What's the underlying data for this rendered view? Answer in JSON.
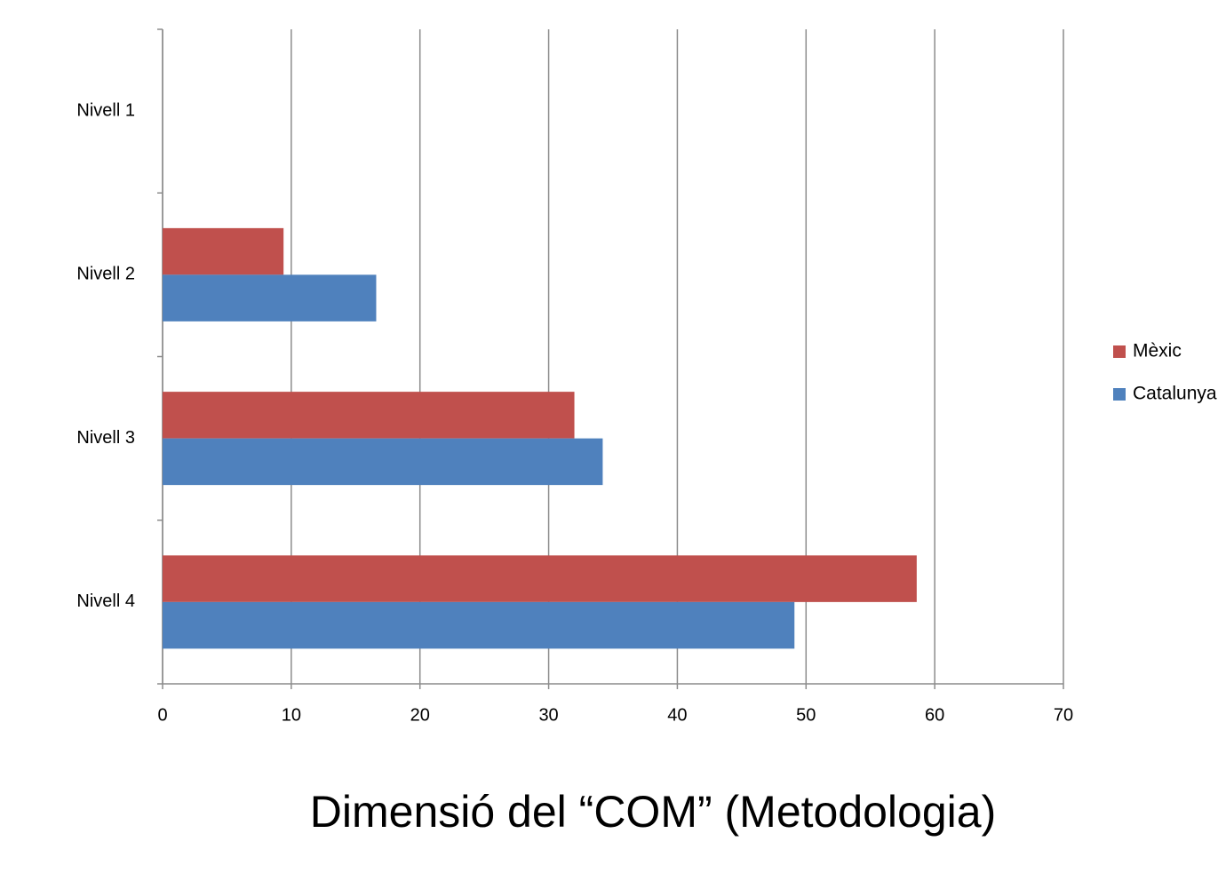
{
  "chart_data": {
    "type": "bar",
    "orientation": "horizontal",
    "title": "Dimensió del “COM” (Metodologia)",
    "categories": [
      "Nivell 1",
      "Nivell 2",
      "Nivell 3",
      "Nivell 4"
    ],
    "series": [
      {
        "name": "Mèxic",
        "color": "#c0504d",
        "values": [
          0,
          9.4,
          32.0,
          58.6
        ]
      },
      {
        "name": "Catalunya",
        "color": "#4f81bd",
        "values": [
          0,
          16.6,
          34.2,
          49.1
        ]
      }
    ],
    "xlim": [
      0,
      70
    ],
    "xticks": [
      0,
      10,
      20,
      30,
      40,
      50,
      60,
      70
    ],
    "grid": true,
    "legend": "right"
  }
}
